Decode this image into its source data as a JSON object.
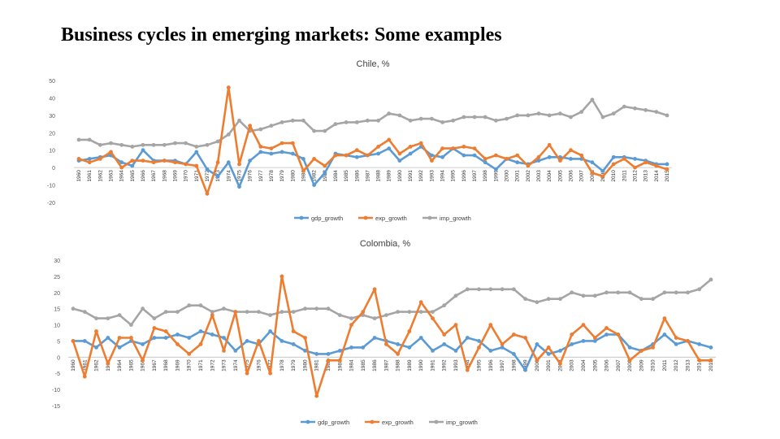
{
  "page": {
    "title": "Business cycles in emerging markets: Some examples"
  },
  "chart_data": [
    {
      "type": "line",
      "title": "Chile, %",
      "ylim": [
        -20,
        50
      ],
      "yticks": [
        -20,
        -10,
        0,
        10,
        20,
        30,
        40,
        50
      ],
      "legend_position": "bottom-center",
      "categories": [
        "1960",
        "1961",
        "1962",
        "1963",
        "1964",
        "1965",
        "1966",
        "1967",
        "1968",
        "1969",
        "1970",
        "1971",
        "1972",
        "1973",
        "1974",
        "1975",
        "1976",
        "1977",
        "1978",
        "1979",
        "1980",
        "1981",
        "1982",
        "1983",
        "1984",
        "1985",
        "1986",
        "1987",
        "1988",
        "1989",
        "1990",
        "1991",
        "1992",
        "1993",
        "1994",
        "1995",
        "1996",
        "1997",
        "1998",
        "1999",
        "2000",
        "2001",
        "2002",
        "2003",
        "2004",
        "2005",
        "2006",
        "2007",
        "2008",
        "2009",
        "2010",
        "2011",
        "2012",
        "2013",
        "2014",
        "2015"
      ],
      "series": [
        {
          "name": "gdp_growth",
          "color": "#5b9bd5",
          "values": [
            4,
            5,
            6,
            7,
            3,
            1,
            10,
            4,
            4,
            4,
            2,
            9,
            -1,
            -5,
            3,
            -11,
            4,
            9,
            8,
            9,
            8,
            5,
            -10,
            -3,
            8,
            7,
            6,
            7,
            8,
            11,
            4,
            8,
            12,
            7,
            6,
            11,
            7,
            7,
            3,
            -1,
            5,
            3,
            2,
            4,
            6,
            6,
            5,
            5,
            3,
            -2,
            6,
            6,
            5,
            4,
            2,
            2
          ]
        },
        {
          "name": "exp_growth",
          "color": "#ed7d31",
          "values": [
            5,
            3,
            5,
            9,
            0,
            4,
            4,
            3,
            4,
            3,
            2,
            1,
            -15,
            3,
            46,
            2,
            24,
            12,
            11,
            14,
            14,
            -2,
            5,
            1,
            7,
            7,
            10,
            7,
            12,
            16,
            8,
            12,
            14,
            4,
            11,
            11,
            12,
            11,
            5,
            7,
            5,
            7,
            1,
            6,
            13,
            4,
            10,
            7,
            -3,
            -5,
            2,
            5,
            0,
            3,
            1,
            -1
          ]
        },
        {
          "name": "imp_growth",
          "color": "#a5a5a5",
          "values": [
            16,
            16,
            13,
            14,
            13,
            12,
            13,
            13,
            13,
            14,
            14,
            12,
            13,
            15,
            19,
            27,
            21,
            22,
            24,
            26,
            27,
            27,
            21,
            21,
            25,
            26,
            26,
            27,
            27,
            31,
            30,
            27,
            28,
            28,
            26,
            27,
            29,
            29,
            29,
            27,
            28,
            30,
            30,
            31,
            30,
            31,
            29,
            32,
            39,
            29,
            31,
            35,
            34,
            33,
            32,
            30
          ]
        }
      ]
    },
    {
      "type": "line",
      "title": "Colombia, %",
      "ylim": [
        -15,
        30
      ],
      "yticks": [
        -15,
        -10,
        -5,
        0,
        5,
        10,
        15,
        20,
        25,
        30
      ],
      "legend_position": "bottom-center",
      "categories": [
        "1960",
        "1961",
        "1962",
        "1963",
        "1964",
        "1965",
        "1966",
        "1967",
        "1968",
        "1969",
        "1970",
        "1971",
        "1972",
        "1973",
        "1974",
        "1975",
        "1976",
        "1977",
        "1978",
        "1979",
        "1980",
        "1981",
        "1982",
        "1983",
        "1984",
        "1985",
        "1986",
        "1987",
        "1988",
        "1989",
        "1990",
        "1991",
        "1992",
        "1993",
        "1994",
        "1995",
        "1996",
        "1997",
        "1998",
        "1999",
        "2000",
        "2001",
        "2002",
        "2003",
        "2004",
        "2005",
        "2006",
        "2007",
        "2008",
        "2009",
        "2010",
        "2011",
        "2012",
        "2013",
        "2014",
        "2015"
      ],
      "series": [
        {
          "name": "gdp_growth",
          "color": "#5b9bd5",
          "values": [
            5,
            5,
            3,
            6,
            3,
            5,
            4,
            6,
            6,
            7,
            6,
            8,
            7,
            6,
            2,
            5,
            4,
            8,
            5,
            4,
            2,
            1,
            1,
            2,
            3,
            3,
            6,
            5,
            4,
            3,
            6,
            2,
            4,
            2,
            6,
            5,
            2,
            3,
            1,
            -4,
            4,
            1,
            2,
            4,
            5,
            5,
            7,
            7,
            3,
            2,
            4,
            7,
            4,
            5,
            4,
            3
          ]
        },
        {
          "name": "exp_growth",
          "color": "#ed7d31",
          "values": [
            5,
            -6,
            8,
            -2,
            6,
            6,
            -1,
            9,
            8,
            4,
            1,
            4,
            13,
            2,
            14,
            -5,
            5,
            -5,
            25,
            8,
            6,
            -12,
            -1,
            -1,
            10,
            14,
            21,
            4,
            1,
            8,
            17,
            12,
            7,
            10,
            -4,
            3,
            10,
            4,
            7,
            6,
            -1,
            3,
            -2,
            7,
            10,
            6,
            9,
            7,
            -1,
            2,
            3,
            12,
            6,
            5,
            -1,
            -1
          ]
        },
        {
          "name": "imp_growth",
          "color": "#a5a5a5",
          "values": [
            15,
            14,
            12,
            12,
            13,
            10,
            15,
            12,
            14,
            14,
            16,
            16,
            14,
            15,
            14,
            14,
            14,
            13,
            14,
            14,
            15,
            15,
            15,
            13,
            12,
            13,
            12,
            13,
            14,
            14,
            14,
            14,
            16,
            19,
            21,
            21,
            21,
            21,
            21,
            18,
            17,
            18,
            18,
            20,
            19,
            19,
            20,
            20,
            20,
            18,
            18,
            20,
            20,
            20,
            21,
            24
          ]
        }
      ]
    }
  ]
}
